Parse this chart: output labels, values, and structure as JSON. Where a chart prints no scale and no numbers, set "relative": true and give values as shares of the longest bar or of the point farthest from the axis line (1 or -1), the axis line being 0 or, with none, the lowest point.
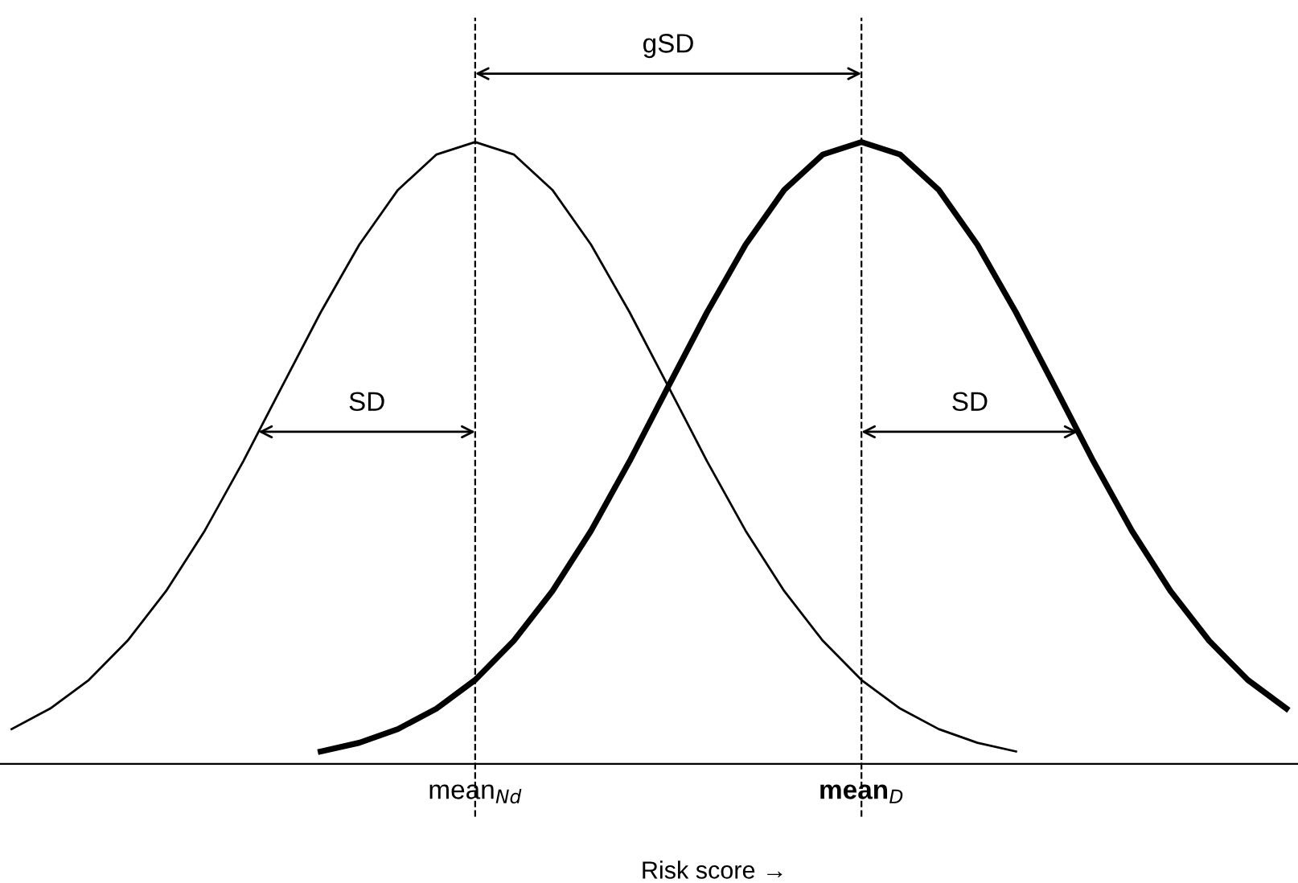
{
  "chart_data": {
    "type": "line",
    "relative": true,
    "xlabel": "Risk score →",
    "categories": [
      null,
      null,
      null,
      null,
      null,
      null,
      null,
      null,
      null,
      null,
      null,
      null,
      "mean$_{Nd}$",
      null,
      null,
      null,
      null,
      null,
      null,
      null,
      null,
      null,
      "mean$_{D}$",
      null,
      null,
      null,
      null,
      null,
      null,
      null,
      null,
      null,
      null,
      null
    ],
    "series": [
      {
        "color": "#000000",
        "values": [
          0.056,
          0.089,
          0.135,
          0.198,
          0.278,
          0.375,
          0.487,
          0.607,
          0.726,
          0.835,
          0.923,
          0.98,
          1,
          0.98,
          0.923,
          0.835,
          0.726,
          0.607,
          0.487,
          0.375,
          0.278,
          0.198,
          0.135,
          0.089,
          0.056,
          0.034,
          0.02,
          null,
          null,
          null,
          null,
          null,
          null,
          null
        ]
      },
      {
        "color": "#000000",
        "values": [
          null,
          null,
          null,
          null,
          null,
          null,
          null,
          null,
          0.02,
          0.034,
          0.056,
          0.089,
          0.135,
          0.198,
          0.278,
          0.375,
          0.487,
          0.607,
          0.726,
          0.835,
          0.923,
          0.98,
          1,
          0.98,
          0.923,
          0.835,
          0.726,
          0.607,
          0.487,
          0.375,
          0.278,
          0.198,
          0.135,
          0.089
        ]
      }
    ],
    "annotations": [
      "SD",
      "gSD",
      "SD"
    ],
    "grid": "x",
    "line_style": "solid",
    "marker": "none",
    "legend": false
  }
}
